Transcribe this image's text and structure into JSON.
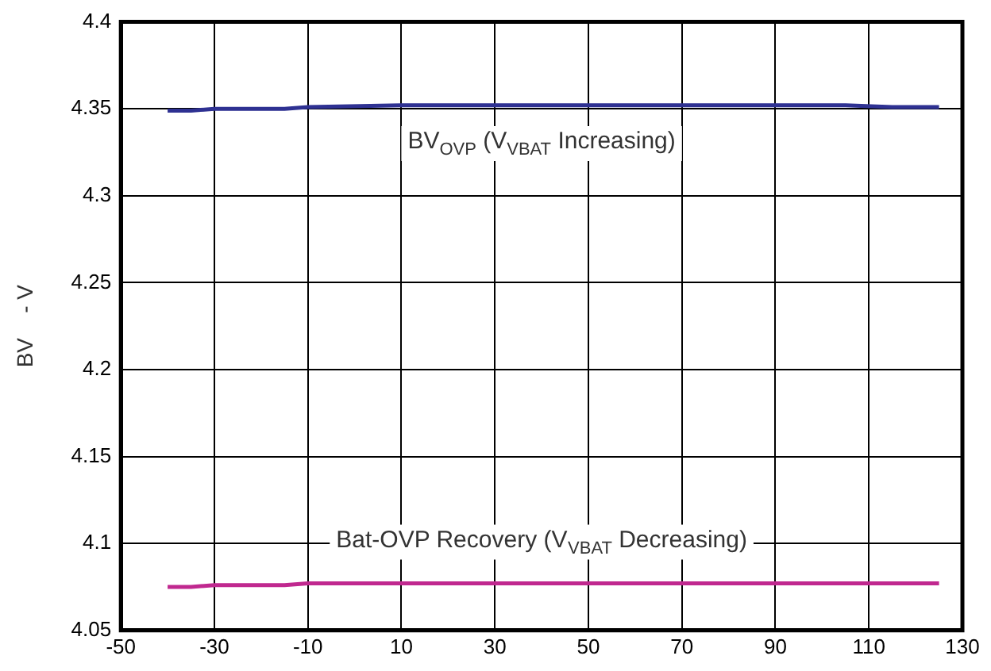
{
  "chart_data": {
    "type": "line",
    "ylabel": "BV    - V",
    "series": [
      {
        "color": "#2e3192",
        "x": [
          -40,
          -35,
          -30,
          -15,
          -10,
          10,
          105,
          115,
          125
        ],
        "values": [
          4.349,
          4.349,
          4.35,
          4.35,
          4.351,
          4.352,
          4.352,
          4.351,
          4.351
        ]
      },
      {
        "color": "#c0288f",
        "x": [
          -40,
          -35,
          -30,
          -15,
          -10,
          125
        ],
        "values": [
          4.075,
          4.075,
          4.076,
          4.076,
          4.077,
          4.077
        ]
      }
    ],
    "xlim": [
      -50,
      130
    ],
    "xticks": [
      -50,
      -30,
      -10,
      10,
      30,
      50,
      70,
      90,
      110,
      130
    ],
    "ylim": [
      4.05,
      4.4
    ],
    "yticks": [
      4.05,
      4.1,
      4.15,
      4.2,
      4.25,
      4.3,
      4.35,
      4.4
    ],
    "grid": true,
    "legend": false,
    "marker": "none",
    "line_style": "solid",
    "annotations": [
      "BV$_{OVP}$ (V$_{VBAT}$ Increasing)",
      "Bat-OVP Recovery (V$_{VBAT}$ Decreasing)"
    ]
  }
}
